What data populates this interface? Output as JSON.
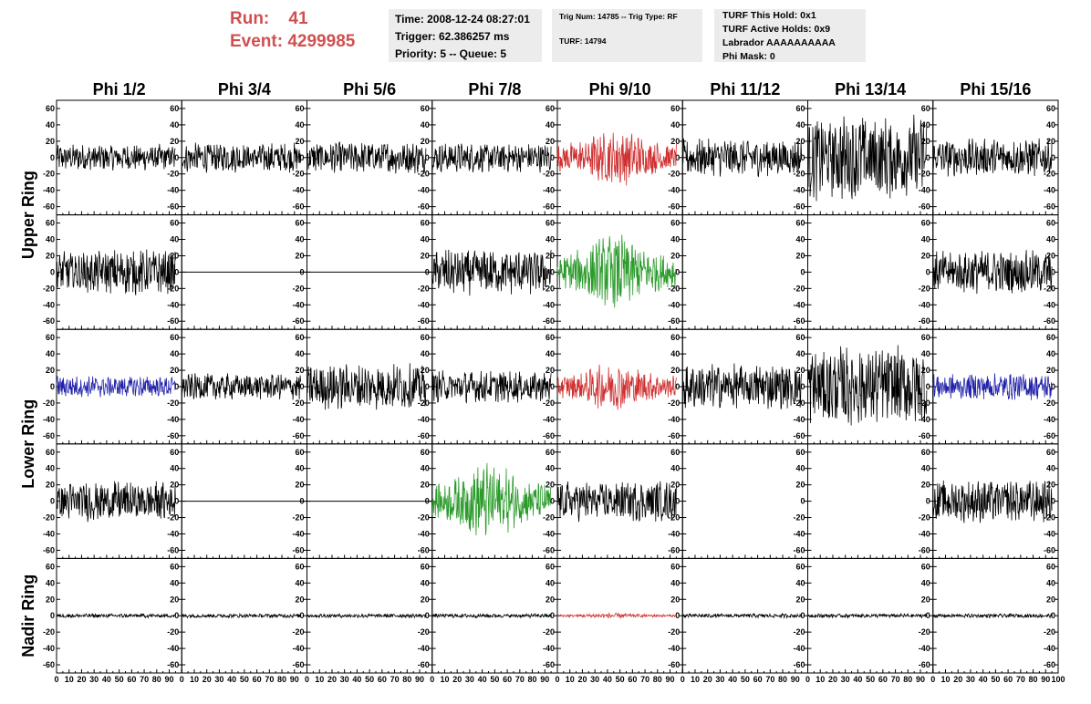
{
  "header": {
    "run_label": "Run:",
    "run_value": "41",
    "event_label": "Event:",
    "event_value": "4299985"
  },
  "info_time": {
    "time": "Time: 2008-12-24 08:27:01",
    "trigger": "Trigger: 62.386257 ms",
    "priority": "Priority: 5 -- Queue: 5"
  },
  "info_trig": {
    "trig": "Trig Num: 14785 -- Trig Type: RF",
    "turf": "TURF: 14794"
  },
  "info_turf": {
    "hold": "TURF This Hold: 0x1",
    "active": "TURF Active Holds: 0x9",
    "labrador": "Labrador AAAAAAAAAA",
    "phimask": "Phi Mask: 0"
  },
  "colors": {
    "default": "#000000",
    "red": "#d03030",
    "green": "#2a9a2a",
    "blue": "#2222aa",
    "run_text": "#d05050",
    "info_bg": "#ececec"
  },
  "chart_data": {
    "type": "line",
    "column_titles": [
      "Phi 1/2",
      "Phi 3/4",
      "Phi 5/6",
      "Phi 7/8",
      "Phi 9/10",
      "Phi 11/12",
      "Phi 13/14",
      "Phi 15/16"
    ],
    "row_titles": [
      "Upper Ring",
      "Lower Ring",
      "Nadir Ring"
    ],
    "y_ticks": [
      60,
      40,
      20,
      0,
      -20,
      -40,
      -60
    ],
    "ylim": [
      -70,
      70
    ],
    "x_ticks": [
      0,
      10,
      20,
      30,
      40,
      50,
      60,
      70,
      80,
      90
    ],
    "x_last_tick": "100",
    "xlim": [
      0,
      100
    ],
    "panels": [
      [
        {
          "a": 10,
          "c": "default"
        },
        {
          "a": 11,
          "c": "default"
        },
        {
          "a": 12,
          "c": "default"
        },
        {
          "a": 11,
          "c": "default"
        },
        {
          "a": 18,
          "c": "red"
        },
        {
          "a": 14,
          "c": "default"
        },
        {
          "a": 32,
          "c": "default"
        },
        {
          "a": 14,
          "c": "default"
        }
      ],
      [
        {
          "a": 17,
          "c": "default"
        },
        {
          "a": 0,
          "c": "default"
        },
        {
          "a": 0,
          "c": "default"
        },
        {
          "a": 17,
          "c": "default"
        },
        {
          "a": 22,
          "c": "green"
        },
        {
          "a": null,
          "c": "default"
        },
        {
          "a": null,
          "c": "default"
        },
        {
          "a": 16,
          "c": "default"
        }
      ],
      [
        {
          "a": 8,
          "c": "blue"
        },
        {
          "a": 10,
          "c": "default"
        },
        {
          "a": 17,
          "c": "default"
        },
        {
          "a": 12,
          "c": "default"
        },
        {
          "a": 14,
          "c": "red"
        },
        {
          "a": 17,
          "c": "default"
        },
        {
          "a": 30,
          "c": "default"
        },
        {
          "a": 10,
          "c": "blue"
        }
      ],
      [
        {
          "a": 15,
          "c": "default"
        },
        {
          "a": 0,
          "c": "default"
        },
        {
          "a": 0,
          "c": "default"
        },
        {
          "a": 22,
          "c": "green"
        },
        {
          "a": 15,
          "c": "default"
        },
        {
          "a": null,
          "c": "default"
        },
        {
          "a": null,
          "c": "default"
        },
        {
          "a": 16,
          "c": "default"
        }
      ],
      [
        {
          "a": 1.5,
          "c": "default"
        },
        {
          "a": 1.5,
          "c": "default"
        },
        {
          "a": 1.5,
          "c": "default"
        },
        {
          "a": 1.5,
          "c": "default"
        },
        {
          "a": 1.5,
          "c": "red"
        },
        {
          "a": 1.5,
          "c": "default"
        },
        {
          "a": 1.5,
          "c": "default"
        },
        {
          "a": 1.5,
          "c": "default"
        }
      ]
    ]
  }
}
